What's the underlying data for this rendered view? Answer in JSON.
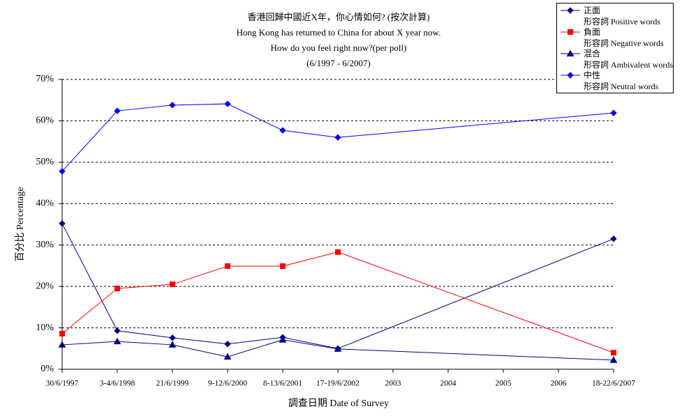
{
  "chart_data": {
    "type": "line",
    "title": "香港回歸中國近X年，你心情如何? (按次計算)",
    "subtitle": [
      "Hong Kong has returned to China for about X year now.",
      "How do you feel right now?(per poll)",
      "(6/1997 - 6/2007)"
    ],
    "x_label": "調查日期 Date of Survey",
    "y_label": "百分比 Percentage",
    "categories": [
      "30/6/1997",
      "3-4/6/1998",
      "21/6/1999",
      "9-12/6/2000",
      "8-13/6/2001",
      "17-19/6/2002",
      "2003",
      "2004",
      "2005",
      "2006",
      "18-22/6/2007"
    ],
    "series": [
      {
        "name": "正面\n形容詞 Positive words",
        "color": "#000080",
        "marker": "diamond",
        "values": [
          35.2,
          9.3,
          7.6,
          6.1,
          7.7,
          5.0,
          null,
          null,
          null,
          null,
          31.5
        ]
      },
      {
        "name": "負面\n形容詞 Negative words",
        "color": "#ff0000",
        "marker": "square",
        "values": [
          8.6,
          19.5,
          20.5,
          24.9,
          24.9,
          28.3,
          null,
          null,
          null,
          null,
          4.0
        ]
      },
      {
        "name": "混合\n形容詞 Ambivalent words",
        "color": "#000080",
        "marker": "triangle",
        "values": [
          5.9,
          6.7,
          5.9,
          3.0,
          7.1,
          4.9,
          null,
          null,
          null,
          null,
          2.2
        ]
      },
      {
        "name": "中性\n形容詞 Neutral words",
        "color": "#0000ff",
        "marker": "diamond",
        "values": [
          47.8,
          62.4,
          63.8,
          64.1,
          57.7,
          56.0,
          null,
          null,
          null,
          null,
          61.9
        ]
      }
    ],
    "connect_gaps": true,
    "ylim": [
      0,
      70
    ],
    "yticks": [
      {
        "value": 0,
        "label": "0%"
      },
      {
        "value": 10,
        "label": "10%"
      },
      {
        "value": 20,
        "label": "20%"
      },
      {
        "value": 30,
        "label": "30%"
      },
      {
        "value": 40,
        "label": "40%"
      },
      {
        "value": 50,
        "label": "50%"
      },
      {
        "value": 60,
        "label": "60%"
      },
      {
        "value": 70,
        "label": "70%"
      }
    ],
    "grid": true,
    "legend_position": "top-right"
  }
}
